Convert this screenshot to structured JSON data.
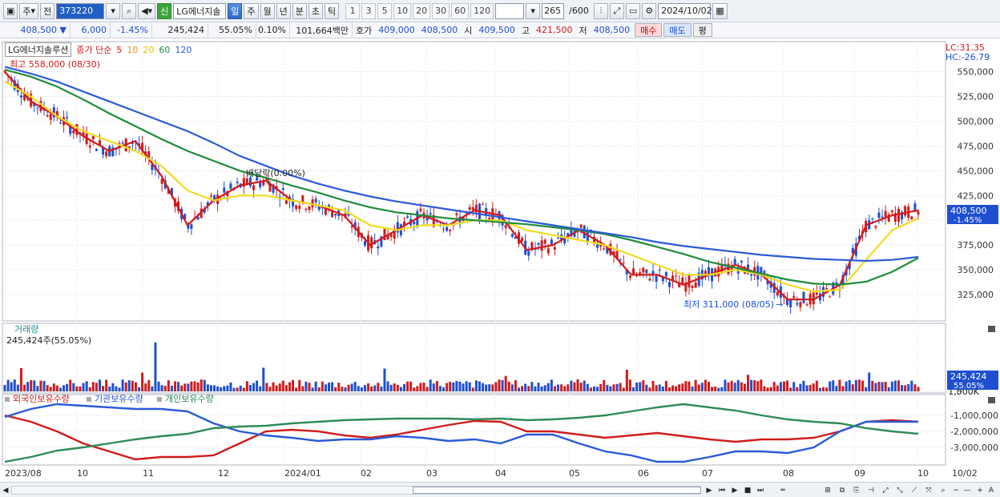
{
  "toolbar": {
    "type_label": "주",
    "mode_label": "전",
    "code": "373220",
    "new_badge": "신",
    "stock_name": "LG에너지솔",
    "periods": [
      "일",
      "주",
      "월",
      "년",
      "분",
      "초",
      "틱"
    ],
    "active_period": "일",
    "intervals": [
      "1",
      "3",
      "5",
      "10",
      "20",
      "30",
      "60",
      "120"
    ],
    "count": "265",
    "count_total": "/600",
    "date": "2024/10/02"
  },
  "quote": {
    "price": "408,500 ▼",
    "change": "6,000",
    "change_pct": "-1.45%",
    "volume": "245,424",
    "volume_ratio": "55.05%",
    "turnover": "0.10%",
    "amount": "101,664백만",
    "bid_label": "호가",
    "bid": "409,000",
    "ask": "408,500",
    "open_label": "시",
    "open": "409,500",
    "high_label": "고",
    "high": "421,500",
    "low_label": "저",
    "low": "408,500",
    "buy_label": "매수",
    "sell_label": "매도",
    "flat_label": "평"
  },
  "price_panel": {
    "name_box": "LG에너지솔루션",
    "series_label": "종가 단순",
    "ma_labels": [
      "5",
      "10",
      "20",
      "60",
      "120"
    ],
    "ma_colors": [
      "#d11b1b",
      "#f08c1e",
      "#f0dc1e",
      "#1f8c3a",
      "#2a5ad8"
    ],
    "high_note": "최고 558,000 (08/30)",
    "low_note": "최저 311,000 (08/05)",
    "dividend_note": "배당락(0.00%)",
    "lc": "LC:31.35",
    "hc": "HC:-26.79",
    "last_price": "408,500",
    "last_pct": "-1.45%",
    "y_ticks": [
      "550,000",
      "525,000",
      "500,000",
      "475,000",
      "450,000",
      "425,000",
      "400,000",
      "375,000",
      "350,000",
      "325,000"
    ]
  },
  "volume_panel": {
    "title": "거래량",
    "value": "245,424주(55.05%)",
    "y_ticks": [
      "1,500K",
      "1,000K"
    ],
    "last": "245,424",
    "last_pct": "55.05%"
  },
  "holding_panel": {
    "legend": [
      "외국인보유수량",
      "기관보유수량",
      "개인보유수량"
    ],
    "colors": [
      "#d11b1b",
      "#2a5ad8",
      "#2e8b57"
    ],
    "y_ticks": [
      "-1,000,000",
      "-2,000,000",
      "-3,000,000"
    ]
  },
  "x_axis": {
    "labels": [
      "2023/08",
      "10",
      "11",
      "12",
      "2024/01",
      "02",
      "03",
      "04",
      "05",
      "06",
      "07",
      "08",
      "09",
      "10",
      "10/02"
    ]
  },
  "chart_data": {
    "type": "line",
    "title": "LG에너지솔루션",
    "ylim": [
      300000,
      565000
    ],
    "series": [
      {
        "name": "5",
        "values": [
          550000,
          520000,
          505000,
          485000,
          470000,
          480000,
          445000,
          395000,
          420000,
          435000,
          440000,
          420000,
          415000,
          405000,
          375000,
          390000,
          405000,
          395000,
          410000,
          405000,
          370000,
          375000,
          390000,
          375000,
          345000,
          345000,
          335000,
          345000,
          355000,
          345000,
          320000,
          320000,
          335000,
          395000,
          405000,
          410000
        ]
      },
      {
        "name": "20",
        "values": [
          540000,
          525000,
          505000,
          490000,
          480000,
          470000,
          455000,
          430000,
          420000,
          425000,
          425000,
          420000,
          415000,
          410000,
          395000,
          390000,
          395000,
          395000,
          400000,
          400000,
          390000,
          385000,
          380000,
          375000,
          365000,
          355000,
          345000,
          345000,
          350000,
          345000,
          335000,
          328000,
          330000,
          360000,
          390000,
          402000
        ]
      },
      {
        "name": "60",
        "values": [
          552000,
          545000,
          535000,
          522000,
          508000,
          495000,
          482000,
          470000,
          460000,
          450000,
          443000,
          435000,
          428000,
          420000,
          413000,
          408000,
          405000,
          402000,
          400000,
          398000,
          396000,
          393000,
          390000,
          386000,
          380000,
          373000,
          366000,
          358000,
          352000,
          346000,
          340000,
          336000,
          335000,
          338000,
          348000,
          362000
        ]
      },
      {
        "name": "120",
        "values": [
          555000,
          548000,
          540000,
          530000,
          520000,
          510000,
          500000,
          490000,
          478000,
          465000,
          455000,
          445000,
          437000,
          430000,
          424000,
          419000,
          415000,
          411000,
          407000,
          403000,
          399000,
          395000,
          391000,
          387000,
          383000,
          378000,
          374000,
          371000,
          368000,
          365000,
          363000,
          361000,
          360000,
          359000,
          360000,
          363000
        ]
      }
    ]
  }
}
